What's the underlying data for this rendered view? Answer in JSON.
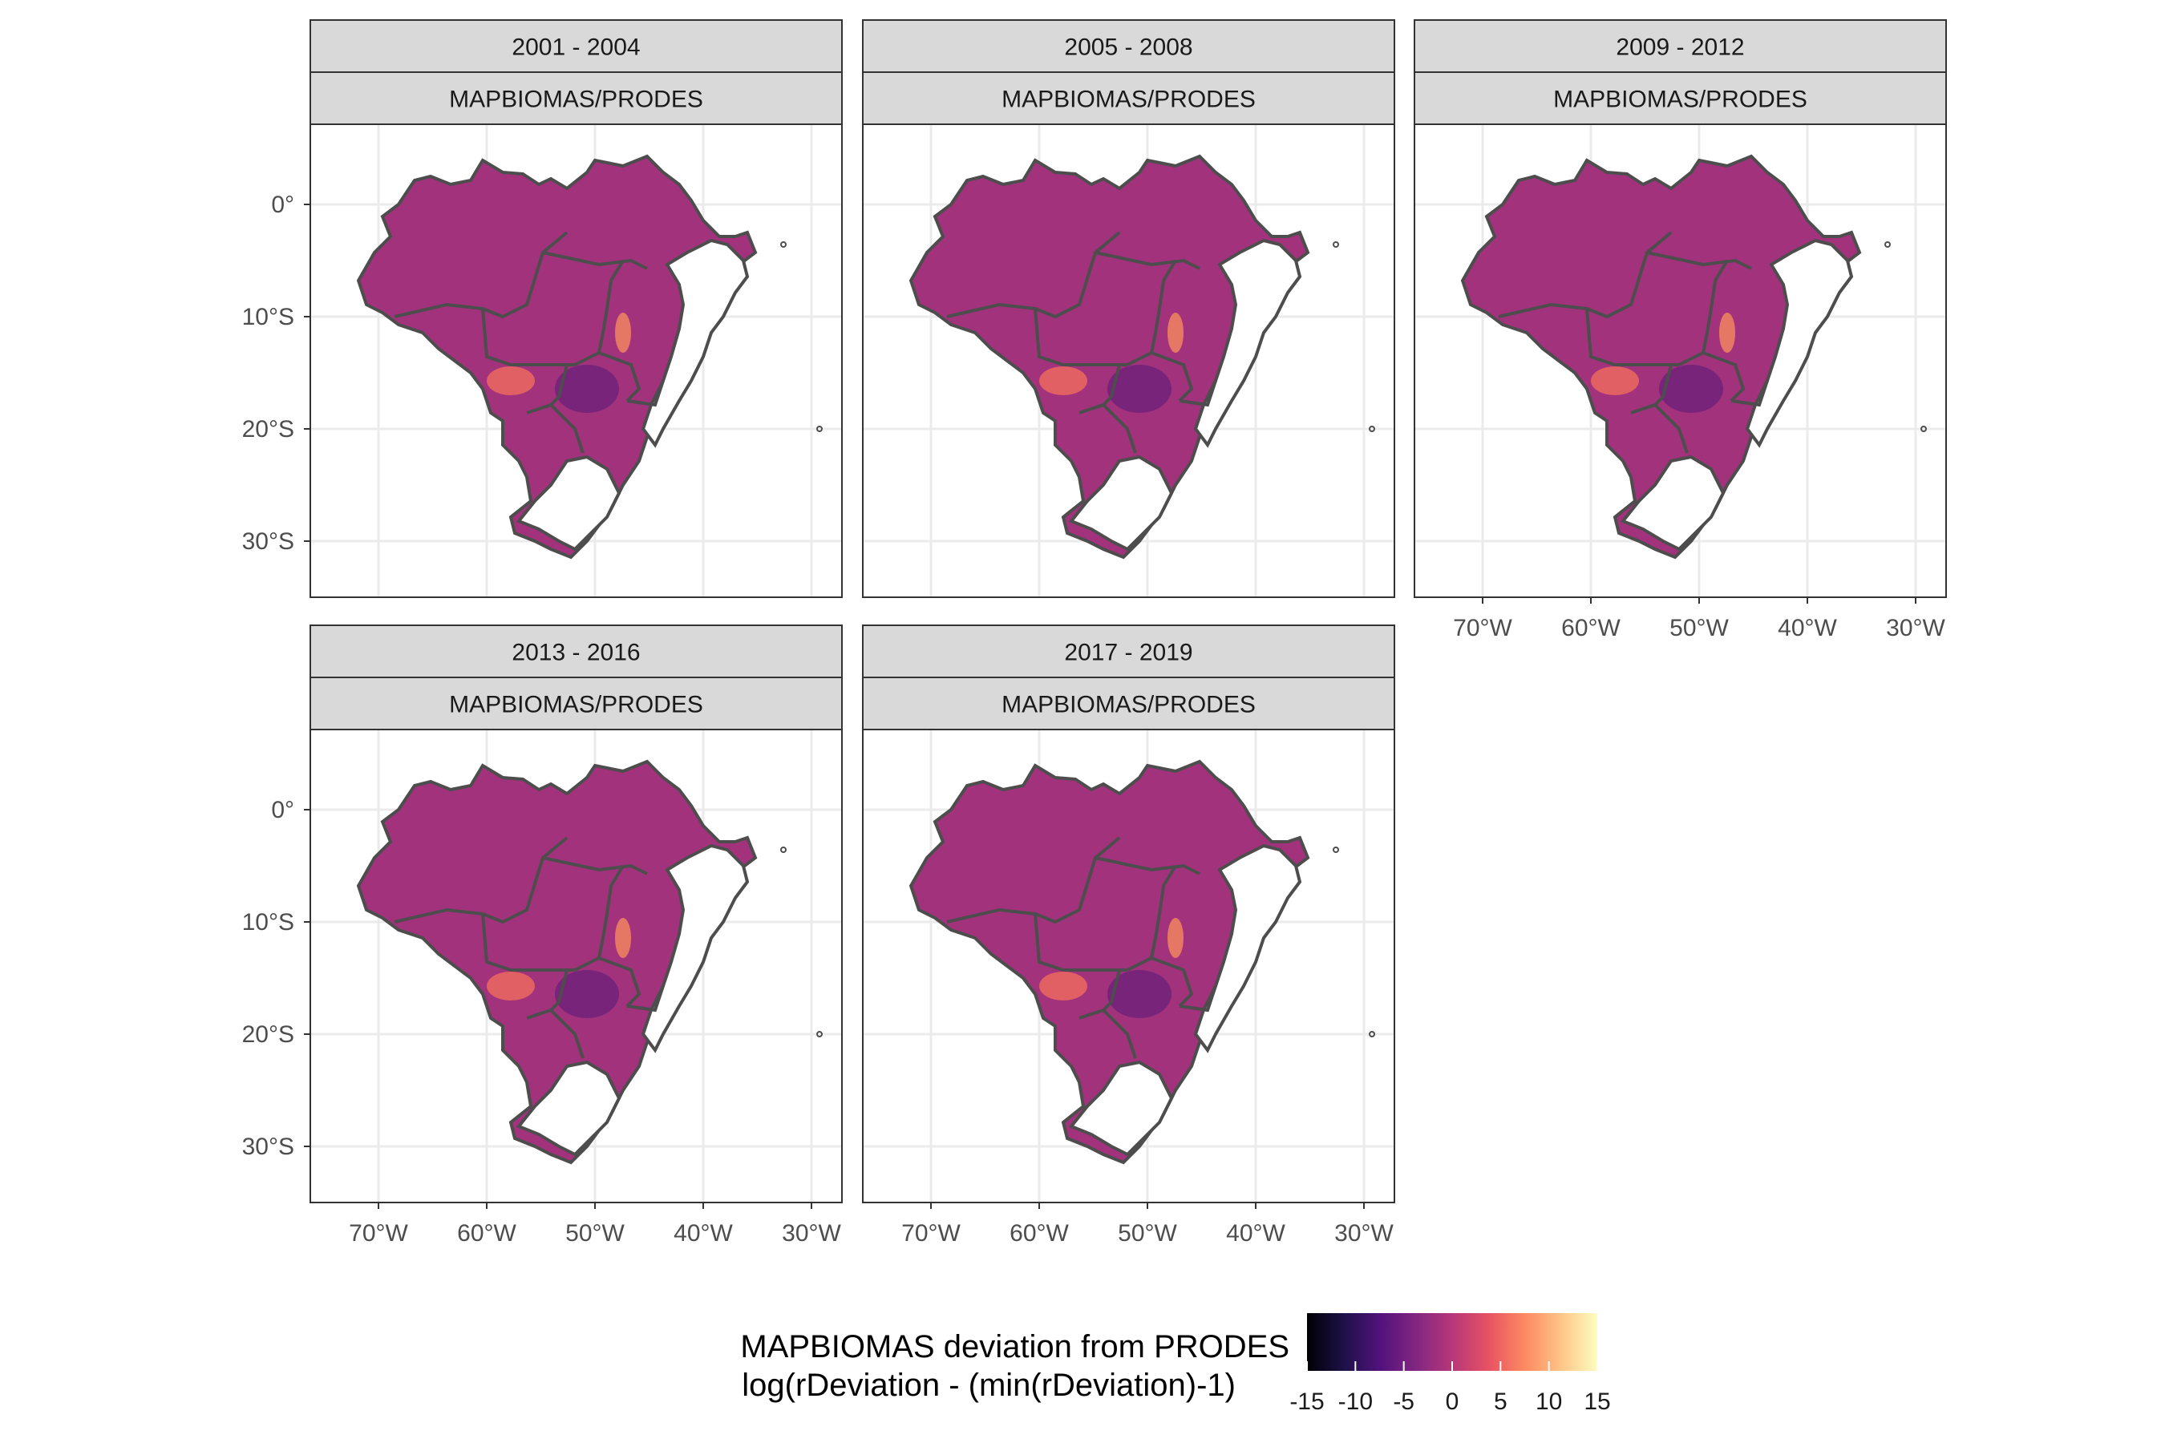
{
  "panels": [
    {
      "period": "2001 - 2004",
      "source": "MAPBIOMAS/PRODES"
    },
    {
      "period": "2005 - 2008",
      "source": "MAPBIOMAS/PRODES"
    },
    {
      "period": "2009 - 2012",
      "source": "MAPBIOMAS/PRODES"
    },
    {
      "period": "2013 - 2016",
      "source": "MAPBIOMAS/PRODES"
    },
    {
      "period": "2017 - 2019",
      "source": "MAPBIOMAS/PRODES"
    }
  ],
  "axes": {
    "y_ticks": [
      "0°",
      "10°S",
      "20°S",
      "30°S"
    ],
    "x_ticks": [
      "70°W",
      "60°W",
      "50°W",
      "40°W",
      "30°W"
    ],
    "grid": true
  },
  "legend": {
    "title_line1": "MAPBIOMAS deviation from PRODES",
    "title_line2": "log(rDeviation - (min(rDeviation)-1)",
    "ticks": [
      "-15",
      "-10",
      "-5",
      "0",
      "5",
      "10",
      "15"
    ],
    "range": [
      -15,
      15
    ],
    "colormap": [
      "#000004",
      "#1d1147",
      "#51127c",
      "#822681",
      "#b73779",
      "#e75263",
      "#fc8961",
      "#fec488",
      "#fcfdbf"
    ]
  },
  "colors": {
    "panel_border": "#333333",
    "strip_fill": "#d9d9d9",
    "grid": "#ebebeb",
    "state_outline": "#4d4d4d",
    "municipality_fill": "#a2327c"
  }
}
